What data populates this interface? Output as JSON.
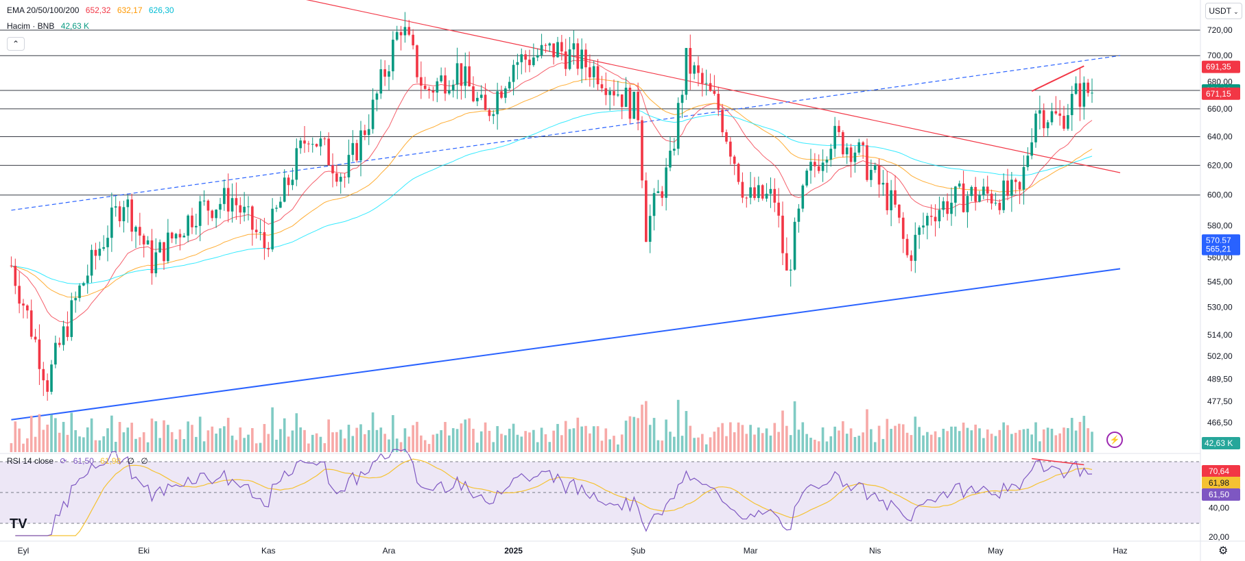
{
  "header": {
    "ema_label": "EMA 20/50/100/200",
    "ema_values": [
      "652,32",
      "632,17",
      "626,30"
    ],
    "ema_colors": [
      "#f23645",
      "#ff9800",
      "#00e5ff"
    ],
    "volume_label": "Hacim · BNB",
    "volume_value": "42,63 K",
    "currency": "USDT"
  },
  "rsi": {
    "label": "RSI 14 close",
    "values": [
      "61,50",
      "61,98",
      "∅",
      "∅"
    ],
    "axis_ticks": [
      "40,00",
      "20,00"
    ],
    "badges": [
      "70,64",
      "61,98",
      "61,50"
    ],
    "line_color": "#7e57c2",
    "ma_color": "#f5c232",
    "band_color": "#ede7f6"
  },
  "chart_data": {
    "type": "candlestick",
    "symbol_quote": "USDT",
    "y_axis_scale": "log",
    "y_ticks": [
      "720,00",
      "700,00",
      "680,00",
      "660,00",
      "640,00",
      "620,00",
      "600,00",
      "580,00",
      "560,00",
      "545,00",
      "530,00",
      "514,00",
      "502,00",
      "489,50",
      "477,50",
      "466,50"
    ],
    "y_tick_values": [
      720,
      700,
      680,
      660,
      640,
      620,
      600,
      580,
      560,
      545,
      530,
      514,
      502,
      489.5,
      477.5,
      466.5
    ],
    "x_ticks": [
      "Eyl",
      "Eki",
      "Kas",
      "Ara",
      "2025",
      "Şub",
      "Mar",
      "Nis",
      "May",
      "Haz"
    ],
    "price_badges": [
      {
        "label": "691,35",
        "value": 691.35,
        "color": "#f23645"
      },
      {
        "label": "673,60",
        "value": 673.6,
        "color": "#089981"
      },
      {
        "label": "671,15",
        "value": 671.15,
        "color": "#f23645"
      },
      {
        "label": "570,57",
        "value": 570.57,
        "color": "#2962ff"
      },
      {
        "label": "565,21",
        "value": 565.21,
        "color": "#2962ff"
      }
    ],
    "volume_badge": {
      "label": "42,63 K",
      "color": "#26a69a"
    },
    "horizontal_levels": [
      720,
      700,
      673.6,
      660,
      640,
      620,
      600
    ],
    "trend_lines": [
      {
        "name": "descending-resistance",
        "color": "#f23645",
        "from": {
          "date": "2024-11-10",
          "price": 745
        },
        "to": {
          "date": "2025-06-01",
          "price": 615
        }
      },
      {
        "name": "ascending-support",
        "color": "#2962ff",
        "from": {
          "date": "2024-08-29",
          "price": 468
        },
        "to": {
          "date": "2025-06-01",
          "price": 553
        }
      },
      {
        "name": "dashed-channel",
        "color": "#2962ff",
        "from": {
          "date": "2024-08-29",
          "price": 590
        },
        "to": {
          "date": "2025-06-01",
          "price": 700
        }
      },
      {
        "name": "divergence-price",
        "color": "#f23645",
        "from": {
          "date": "2025-05-10",
          "price": 673
        },
        "to": {
          "date": "2025-05-23",
          "price": 692
        }
      }
    ],
    "close_series_anchors": [
      [
        "2024-08-29",
        555
      ],
      [
        "2024-09-07",
        488
      ],
      [
        "2024-09-15",
        540
      ],
      [
        "2024-09-26",
        598
      ],
      [
        "2024-10-03",
        557
      ],
      [
        "2024-10-14",
        590
      ],
      [
        "2024-10-23",
        598
      ],
      [
        "2024-10-31",
        567
      ],
      [
        "2024-11-11",
        644
      ],
      [
        "2024-11-20",
        612
      ],
      [
        "2024-11-27",
        660
      ],
      [
        "2024-12-04",
        725
      ],
      [
        "2024-12-10",
        672
      ],
      [
        "2024-12-18",
        690
      ],
      [
        "2024-12-25",
        655
      ],
      [
        "2025-01-01",
        695
      ],
      [
        "2025-01-12",
        705
      ],
      [
        "2025-01-22",
        688
      ],
      [
        "2025-02-01",
        658
      ],
      [
        "2025-02-03",
        578
      ],
      [
        "2025-02-09",
        620
      ],
      [
        "2025-02-13",
        695
      ],
      [
        "2025-02-21",
        660
      ],
      [
        "2025-02-28",
        598
      ],
      [
        "2025-03-07",
        598
      ],
      [
        "2025-03-10",
        548
      ],
      [
        "2025-03-15",
        610
      ],
      [
        "2025-03-21",
        640
      ],
      [
        "2025-03-27",
        632
      ],
      [
        "2025-04-06",
        590
      ],
      [
        "2025-04-09",
        560
      ],
      [
        "2025-04-15",
        590
      ],
      [
        "2025-04-24",
        600
      ],
      [
        "2025-05-07",
        600
      ],
      [
        "2025-05-11",
        660
      ],
      [
        "2025-05-17",
        652
      ],
      [
        "2025-05-21",
        670
      ],
      [
        "2025-05-25",
        673.6
      ]
    ],
    "ema_series": [
      {
        "name": "EMA 20",
        "value": 652.32,
        "color": "#f23645"
      },
      {
        "name": "EMA 50",
        "value": 632.17,
        "color": "#ff9800"
      },
      {
        "name": "EMA 100",
        "value": 626.3,
        "color": "#00e5ff"
      }
    ]
  }
}
